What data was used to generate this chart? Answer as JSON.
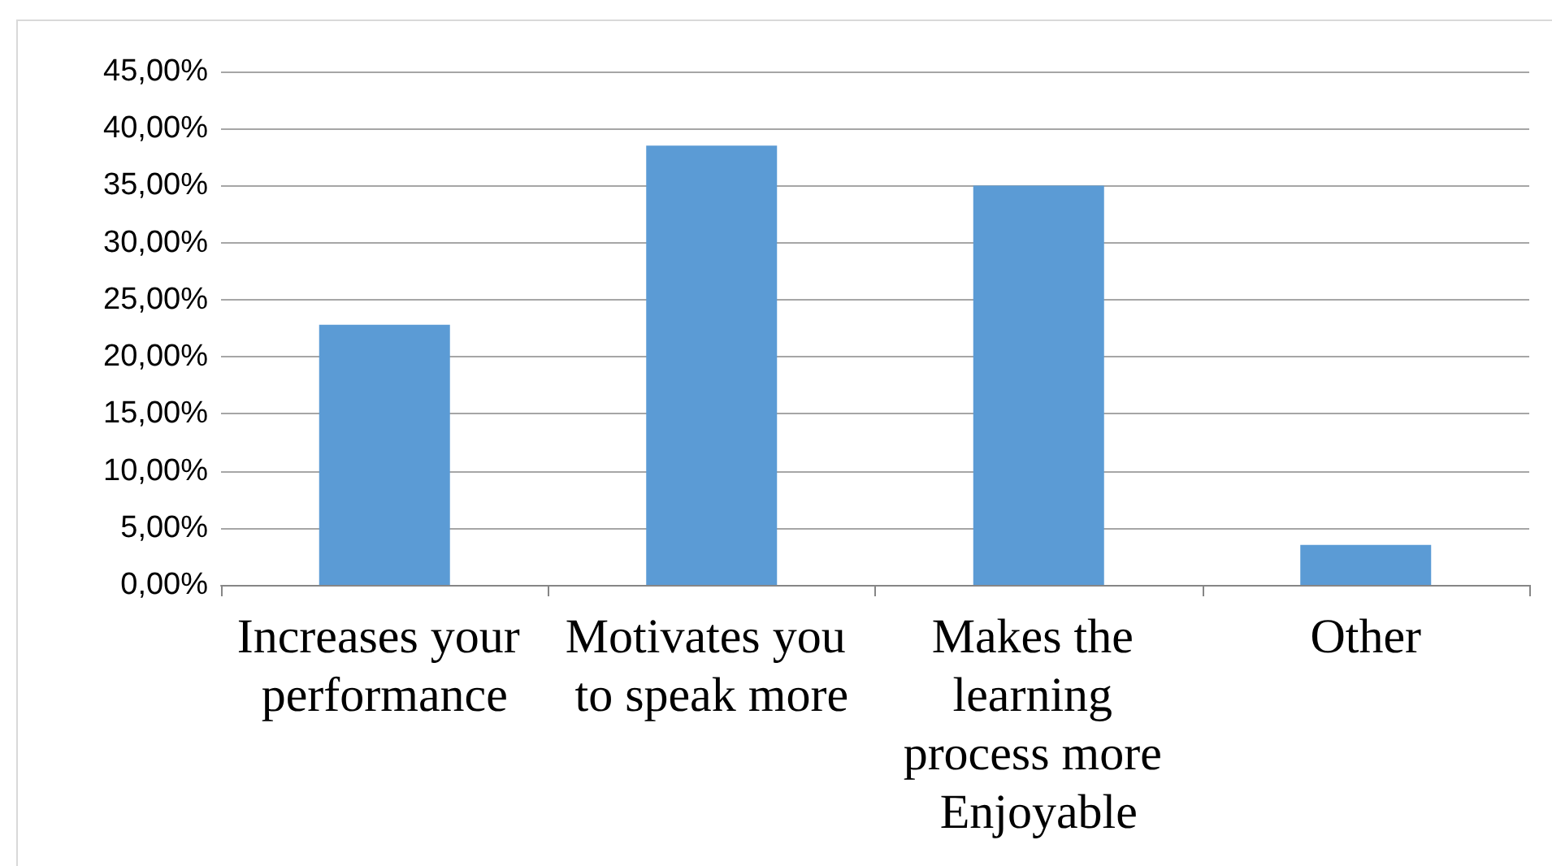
{
  "chart_data": {
    "type": "bar",
    "categories": [
      "Increases your performance",
      "Motivates you to speak more",
      "Makes the learning process more Enjoyable",
      "Other"
    ],
    "values": [
      22.8,
      38.5,
      35.0,
      3.5
    ],
    "color": "#5b9bd5",
    "ylim": [
      0,
      45
    ],
    "yticks": [
      {
        "value": 0,
        "label": "0,00%"
      },
      {
        "value": 5,
        "label": "5,00%"
      },
      {
        "value": 10,
        "label": "10,00%"
      },
      {
        "value": 15,
        "label": "15,00%"
      },
      {
        "value": 20,
        "label": "20,00%"
      },
      {
        "value": 25,
        "label": "25,00%"
      },
      {
        "value": 30,
        "label": "30,00%"
      },
      {
        "value": 35,
        "label": "35,00%"
      },
      {
        "value": 40,
        "label": "40,00%"
      },
      {
        "value": 45,
        "label": "45,00%"
      }
    ],
    "grid": true
  }
}
